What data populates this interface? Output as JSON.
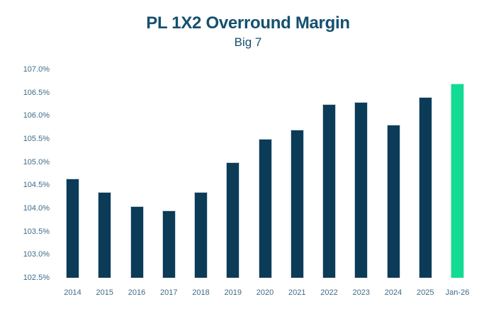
{
  "header": {
    "title": "PL 1X2 Overround Margin",
    "subtitle": "Big 7"
  },
  "colors": {
    "background": "#FFFFFF",
    "bar_default": "#0C3B58",
    "bar_highlight": "#12DB94",
    "bar_border": "#C9D6DD",
    "title_text": "#15506F",
    "axis_text": "#3E6A88"
  },
  "chart_data": {
    "type": "bar",
    "title": "PL 1X2 Overround Margin",
    "subtitle": "Big 7",
    "categories": [
      "2014",
      "2015",
      "2016",
      "2017",
      "2018",
      "2019",
      "2020",
      "2021",
      "2022",
      "2023",
      "2024",
      "2025",
      "Jan-26"
    ],
    "values": [
      104.65,
      104.35,
      104.05,
      103.95,
      104.35,
      105.0,
      105.5,
      105.7,
      106.25,
      106.3,
      105.8,
      106.4,
      106.7
    ],
    "unit": "%",
    "ylim": [
      102.5,
      107.0
    ],
    "ytick_step": 0.5,
    "ytick_labels": [
      "107.0%",
      "106.5%",
      "106.0%",
      "105.5%",
      "105.0%",
      "104.5%",
      "104.0%",
      "103.5%",
      "103.0%",
      "102.5%"
    ],
    "highlight_category": "Jan-26",
    "grid": false,
    "legend": false,
    "xlabel": "",
    "ylabel": ""
  }
}
